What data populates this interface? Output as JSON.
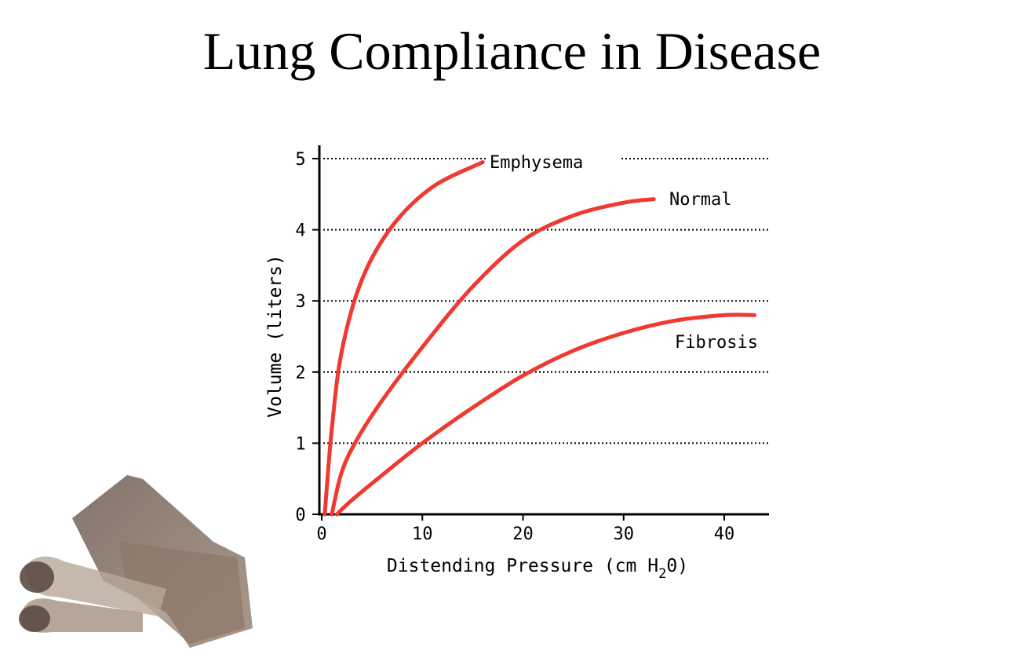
{
  "title": "Lung Compliance in Disease",
  "chart_data": {
    "type": "line",
    "xlabel": "Distending Pressure (cm H",
    "xlabel_sub": "2",
    "xlabel_end": "0)",
    "ylabel": "Volume (liters)",
    "xlim": [
      0,
      44
    ],
    "ylim": [
      0,
      5
    ],
    "xticks": [
      0,
      10,
      20,
      30,
      40
    ],
    "yticks": [
      0,
      1,
      2,
      3,
      4,
      5
    ],
    "grid": "horizontal dotted",
    "line_color": "#ef3a32",
    "series": [
      {
        "name": "Emphysema",
        "x": [
          0.3,
          1,
          2,
          4,
          7,
          11,
          16
        ],
        "y": [
          0,
          1.2,
          2.3,
          3.3,
          4.05,
          4.6,
          4.95
        ]
      },
      {
        "name": "Normal",
        "x": [
          1,
          2,
          3.5,
          6,
          10,
          15,
          20,
          25,
          30,
          33
        ],
        "y": [
          0,
          0.6,
          1.05,
          1.6,
          2.35,
          3.2,
          3.85,
          4.2,
          4.38,
          4.43
        ]
      },
      {
        "name": "Fibrosis",
        "x": [
          1.5,
          3,
          6,
          10,
          15,
          20,
          25,
          30,
          35,
          40,
          43
        ],
        "y": [
          0,
          0.2,
          0.55,
          1.0,
          1.5,
          1.95,
          2.3,
          2.55,
          2.72,
          2.8,
          2.8
        ]
      }
    ]
  }
}
